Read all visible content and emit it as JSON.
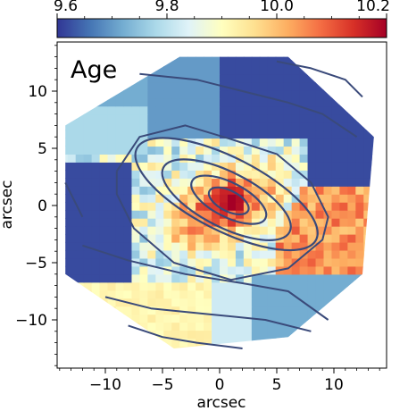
{
  "chart_data": {
    "type": "heatmap",
    "panel_label": "Age",
    "xlabel": "arcsec",
    "ylabel": "arcsec",
    "xlim": [
      -14.5,
      14.5
    ],
    "ylim": [
      -14.5,
      14.5
    ],
    "xticks": [
      -10,
      -5,
      0,
      5,
      10
    ],
    "yticks": [
      -10,
      -5,
      0,
      5,
      10
    ],
    "xtick_labels": [
      "−10",
      "−5",
      "0",
      "5",
      "10"
    ],
    "ytick_labels": [
      "−10",
      "−5",
      "0",
      "5",
      "10"
    ],
    "colorbar": {
      "range": [
        9.6,
        10.2
      ],
      "ticks": [
        9.6,
        9.8,
        10.0,
        10.2
      ],
      "tick_labels": [
        "9.6",
        "9.8",
        "10.0",
        "10.2"
      ],
      "orientation": "horizontal",
      "position": "top",
      "colormap": "RdYlBu_r"
    },
    "colormap_stops": [
      "#313695",
      "#4575b4",
      "#74add1",
      "#abd9e9",
      "#e0f3f8",
      "#ffffbf",
      "#fee090",
      "#fdae61",
      "#f46d43",
      "#d73027",
      "#a50026"
    ],
    "contour_color": "#3a4a7a",
    "grid": false
  }
}
